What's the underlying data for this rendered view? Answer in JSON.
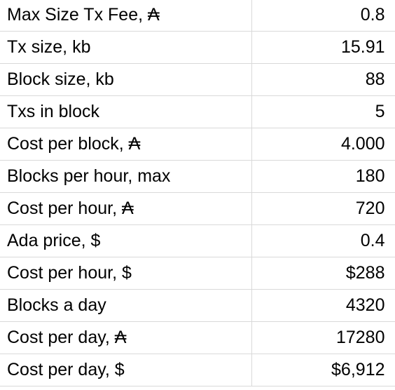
{
  "rows": [
    {
      "label": "Max Size Tx Fee, ₳",
      "value": "0.8"
    },
    {
      "label": "Tx size, kb",
      "value": "15.91"
    },
    {
      "label": "Block size, kb",
      "value": "88"
    },
    {
      "label": "Txs in block",
      "value": "5"
    },
    {
      "label": "Cost per block, ₳",
      "value": "4.000"
    },
    {
      "label": "Blocks per hour, max",
      "value": "180"
    },
    {
      "label": "Cost per hour, ₳",
      "value": "720"
    },
    {
      "label": "Ada price, $",
      "value": "0.4"
    },
    {
      "label": "Cost per hour, $",
      "value": "$288"
    },
    {
      "label": "Blocks a day",
      "value": "4320"
    },
    {
      "label": "Cost per day, ₳",
      "value": "17280"
    },
    {
      "label": "Cost per day, $",
      "value": "$6,912"
    }
  ]
}
